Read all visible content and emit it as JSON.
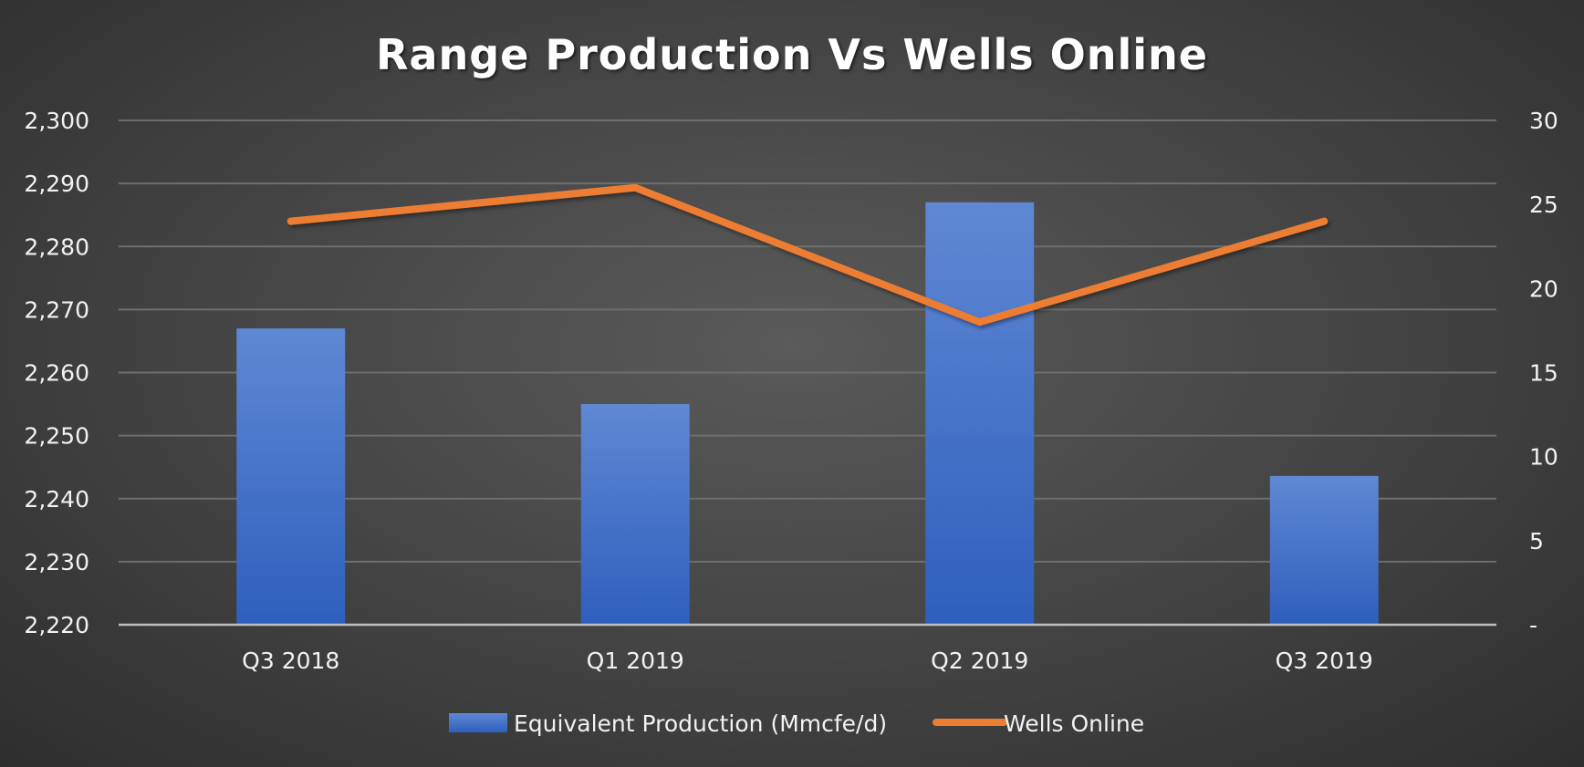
{
  "chart_data": {
    "type": "bar",
    "title": "Range Production Vs Wells Online",
    "categories": [
      "Q3 2018",
      "Q1 2019",
      "Q2 2019",
      "Q3 2019"
    ],
    "series": [
      {
        "name": "Equivalent Production (Mmcfe/d)",
        "type": "bar",
        "axis": "left",
        "color": "#3F72C8",
        "values": [
          2267,
          2255,
          2287,
          2243.6
        ]
      },
      {
        "name": "Wells Online",
        "type": "line",
        "axis": "right",
        "color": "#ED7D31",
        "values": [
          24,
          26,
          18,
          24
        ]
      }
    ],
    "y_left": {
      "min": 2220,
      "max": 2300,
      "step": 10,
      "tick_labels": [
        "2,220",
        "2,230",
        "2,240",
        "2,250",
        "2,260",
        "2,270",
        "2,280",
        "2,290",
        "2,300"
      ]
    },
    "y_right": {
      "min": 0,
      "max": 30,
      "step": 5,
      "tick_labels": [
        "-",
        "5",
        "10",
        "15",
        "20",
        "25",
        "30"
      ]
    },
    "grid": true,
    "legend_position": "bottom"
  }
}
